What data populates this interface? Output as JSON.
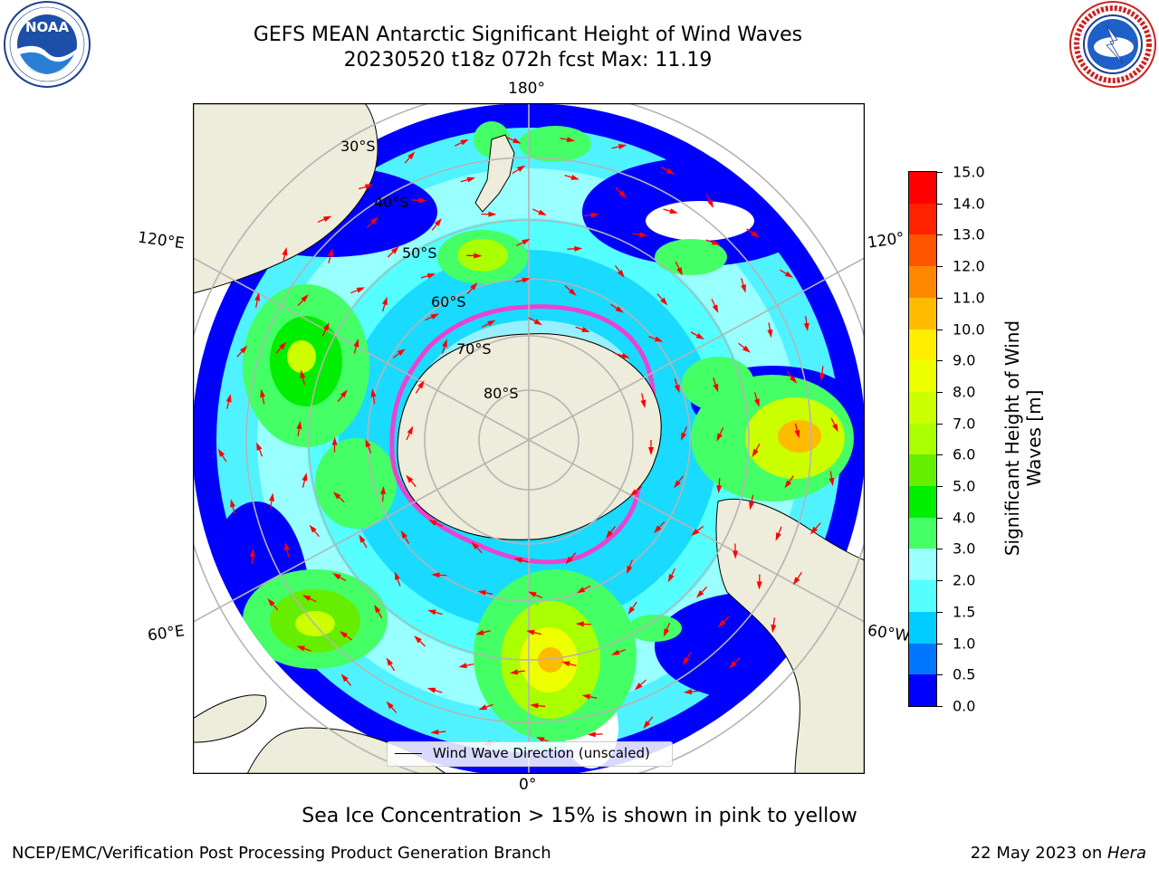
{
  "title": {
    "line1": "GEFS MEAN Antarctic Significant Height of Wind Waves",
    "line2": "20230520 t18z 072h fcst   Max: 11.19"
  },
  "logos": {
    "left": {
      "name": "noaa-logo",
      "text": "NOAA",
      "ring_text": "NATIONAL OCEANIC AND ATMOSPHERIC ADMINISTRATION · U.S. DEPARTMENT OF COMMERCE"
    },
    "right": {
      "name": "nws-logo",
      "ring_text": "NATIONAL WEATHER SERVICE"
    }
  },
  "map": {
    "projection": "south-polar-stereographic",
    "longitude_labels": {
      "top": "180°",
      "bottom": "0°",
      "upper_left": "120°E",
      "lower_left": "60°E",
      "upper_right": "120°",
      "lower_right": "60°W"
    },
    "latitude_labels": [
      "30°S",
      "40°S",
      "50°S",
      "60°S",
      "70°S",
      "80°S"
    ],
    "legend": "Wind Wave Direction (unscaled)",
    "colors": {
      "land": "#eeecda",
      "ocean_no_data": "#ffffff",
      "graticule": "#b4b4b4",
      "arrows": "#ff0000",
      "sea_ice": "#ff33cc"
    }
  },
  "colorbar": {
    "label": "Significant Height of Wind Waves [m]",
    "ticks": [
      "0.0",
      "0.5",
      "1.0",
      "1.5",
      "2.0",
      "3.0",
      "4.0",
      "5.0",
      "6.0",
      "7.0",
      "8.0",
      "9.0",
      "10.0",
      "11.0",
      "12.0",
      "13.0",
      "14.0",
      "15.0"
    ],
    "colors": [
      "#0000ff",
      "#0077ff",
      "#00ccff",
      "#55ffff",
      "#99ffff",
      "#44ff66",
      "#00ee00",
      "#66ee00",
      "#aaff00",
      "#ccff00",
      "#eeff00",
      "#ffee00",
      "#ffbb00",
      "#ff8800",
      "#ff5500",
      "#ff2200",
      "#ff0000"
    ]
  },
  "subtitle": "Sea Ice Concentration > 15% is shown in pink to yellow",
  "footer": {
    "left": "NCEP/EMC/Verification Post Processing Product Generation Branch",
    "date": "22 May 2023 on ",
    "machine": "Hera"
  }
}
